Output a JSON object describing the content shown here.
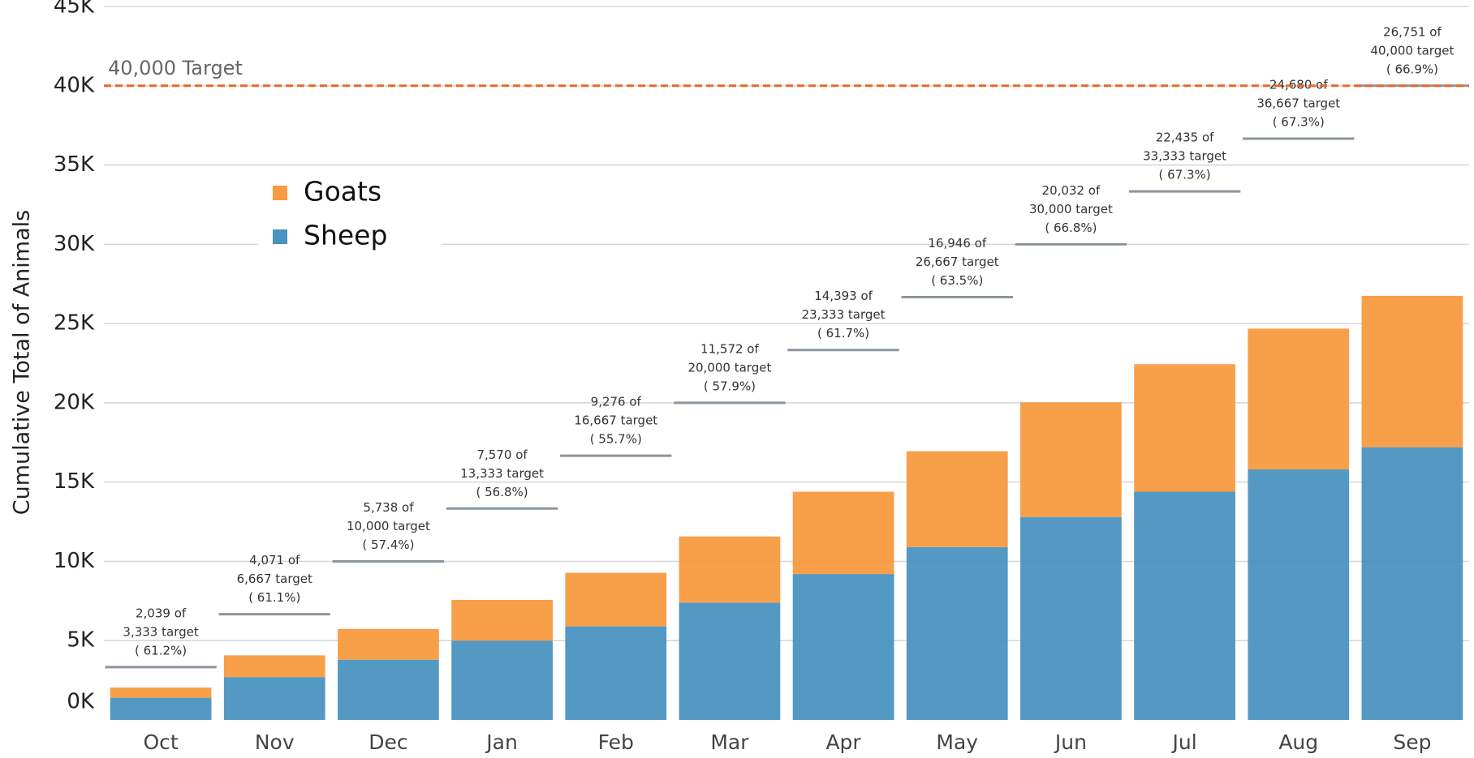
{
  "chart_data": {
    "type": "stacked_bar",
    "y_label": "Cumulative Total of Animals",
    "categories": [
      "Oct",
      "Nov",
      "Dec",
      "Jan",
      "Feb",
      "Mar",
      "Apr",
      "May",
      "Jun",
      "Jul",
      "Aug",
      "Sep"
    ],
    "series": [
      {
        "name": "Sheep",
        "color": "#4a93c0",
        "values": [
          1400,
          2700,
          3800,
          5000,
          5900,
          7400,
          9200,
          10900,
          12800,
          14400,
          15800,
          17200
        ]
      },
      {
        "name": "Goats",
        "color": "#f89a40",
        "values": [
          639,
          1371,
          1938,
          2570,
          3376,
          4172,
          5193,
          6046,
          7232,
          8035,
          8880,
          9551
        ]
      }
    ],
    "targets": [
      3333,
      6667,
      10000,
      13333,
      16667,
      20000,
      23333,
      26667,
      30000,
      33333,
      36667,
      40000
    ],
    "target_color": "#8c959c",
    "annotations": [
      [
        "2,039 of",
        "3,333 target",
        "( 61.2%)"
      ],
      [
        "4,071 of",
        "6,667 target",
        "( 61.1%)"
      ],
      [
        "5,738 of",
        "10,000 target",
        "( 57.4%)"
      ],
      [
        "7,570 of",
        "13,333 target",
        "( 56.8%)"
      ],
      [
        "9,276 of",
        "16,667 target",
        "( 55.7%)"
      ],
      [
        "11,572 of",
        "20,000 target",
        "( 57.9%)"
      ],
      [
        "14,393 of",
        "23,333 target",
        "( 61.7%)"
      ],
      [
        "16,946 of",
        "26,667 target",
        "( 63.5%)"
      ],
      [
        "20,032 of",
        "30,000 target",
        "( 66.8%)"
      ],
      [
        "22,435 of",
        "33,333 target",
        "( 67.3%)"
      ],
      [
        "24,680 of",
        "36,667 target",
        "( 67.3%)"
      ],
      [
        "26,751 of",
        "40,000 target",
        "( 66.9%)"
      ]
    ],
    "target_line": {
      "value": 40000,
      "label": "40,000 Target",
      "color": "#e8692a"
    },
    "ylim": [
      0,
      45000
    ],
    "yticks": [
      {
        "value": 0,
        "label": "0K"
      },
      {
        "value": 5000,
        "label": "5K"
      },
      {
        "value": 10000,
        "label": "10K"
      },
      {
        "value": 15000,
        "label": "15K"
      },
      {
        "value": 20000,
        "label": "20K"
      },
      {
        "value": 25000,
        "label": "25K"
      },
      {
        "value": 30000,
        "label": "30K"
      },
      {
        "value": 35000,
        "label": "35K"
      },
      {
        "value": 40000,
        "label": "40K"
      },
      {
        "value": 45000,
        "label": "45K"
      }
    ],
    "grid": true,
    "legend": "top-left"
  }
}
